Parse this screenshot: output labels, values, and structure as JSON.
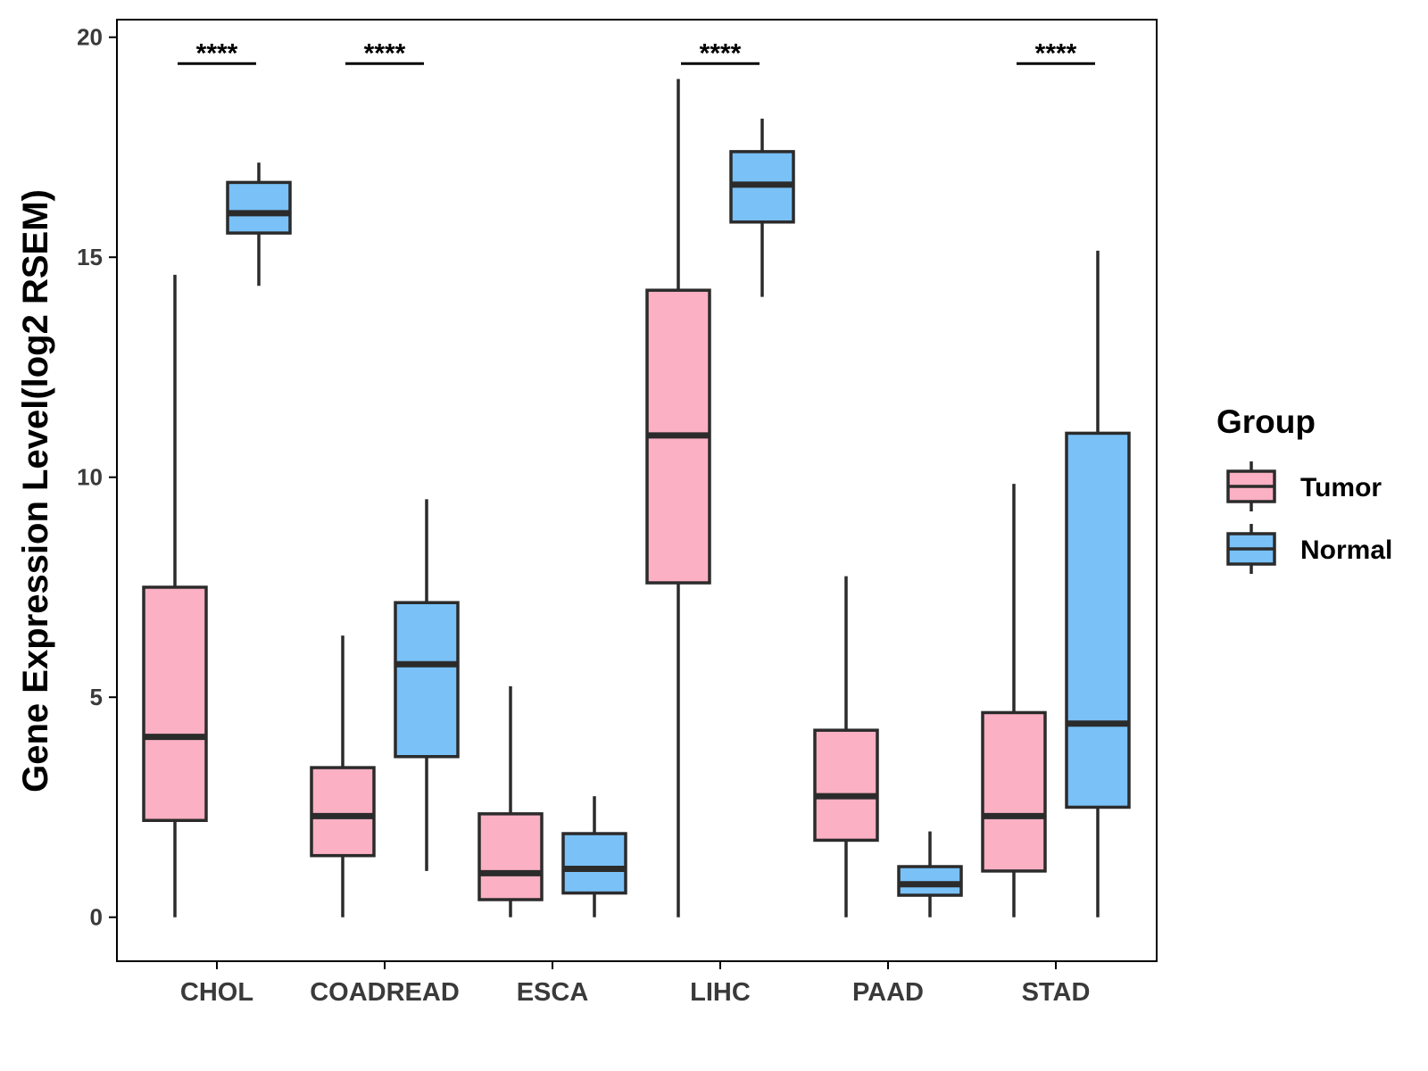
{
  "chart_data": {
    "type": "boxplot",
    "title": "",
    "xlabel": "",
    "ylabel": "Gene Expression Level(log2 RSEM)",
    "ylim": [
      -1,
      20.4
    ],
    "yticks": [
      0,
      5,
      10,
      15,
      20
    ],
    "grid": false,
    "legend": {
      "title": "Group",
      "position": "right"
    },
    "categories": [
      "CHOL",
      "COADREAD",
      "ESCA",
      "LIHC",
      "PAAD",
      "STAD"
    ],
    "series": [
      {
        "name": "Tumor",
        "color": "#FBB0C3",
        "boxes": [
          {
            "lower_whisker": 0.0,
            "q1": 2.2,
            "median": 4.1,
            "q3": 7.5,
            "upper_whisker": 14.6
          },
          {
            "lower_whisker": 0.0,
            "q1": 1.4,
            "median": 2.3,
            "q3": 3.4,
            "upper_whisker": 6.4
          },
          {
            "lower_whisker": 0.0,
            "q1": 0.4,
            "median": 1.0,
            "q3": 2.35,
            "upper_whisker": 5.25
          },
          {
            "lower_whisker": 0.0,
            "q1": 7.6,
            "median": 10.95,
            "q3": 14.25,
            "upper_whisker": 19.05
          },
          {
            "lower_whisker": 0.0,
            "q1": 1.75,
            "median": 2.75,
            "q3": 4.25,
            "upper_whisker": 7.75
          },
          {
            "lower_whisker": 0.0,
            "q1": 1.05,
            "median": 2.3,
            "q3": 4.65,
            "upper_whisker": 9.85
          }
        ]
      },
      {
        "name": "Normal",
        "color": "#79C1F7",
        "boxes": [
          {
            "lower_whisker": 14.35,
            "q1": 15.55,
            "median": 16.0,
            "q3": 16.7,
            "upper_whisker": 17.15
          },
          {
            "lower_whisker": 1.05,
            "q1": 3.65,
            "median": 5.75,
            "q3": 7.15,
            "upper_whisker": 9.5
          },
          {
            "lower_whisker": 0.0,
            "q1": 0.55,
            "median": 1.1,
            "q3": 1.9,
            "upper_whisker": 2.75
          },
          {
            "lower_whisker": 14.1,
            "q1": 15.8,
            "median": 16.65,
            "q3": 17.4,
            "upper_whisker": 18.15
          },
          {
            "lower_whisker": 0.0,
            "q1": 0.5,
            "median": 0.75,
            "q3": 1.15,
            "upper_whisker": 1.95
          },
          {
            "lower_whisker": 0.0,
            "q1": 2.5,
            "median": 4.4,
            "q3": 11.0,
            "upper_whisker": 15.15
          }
        ]
      }
    ],
    "annotations": [
      {
        "category": "CHOL",
        "text": "****",
        "y": 19.4
      },
      {
        "category": "COADREAD",
        "text": "****",
        "y": 19.4
      },
      {
        "category": "LIHC",
        "text": "****",
        "y": 19.4
      },
      {
        "category": "STAD",
        "text": "****",
        "y": 19.4
      }
    ]
  },
  "colors": {
    "tumor": "#FBB0C3",
    "normal": "#79C1F7",
    "stroke": "#2b2b2b",
    "axis": "#000000"
  }
}
